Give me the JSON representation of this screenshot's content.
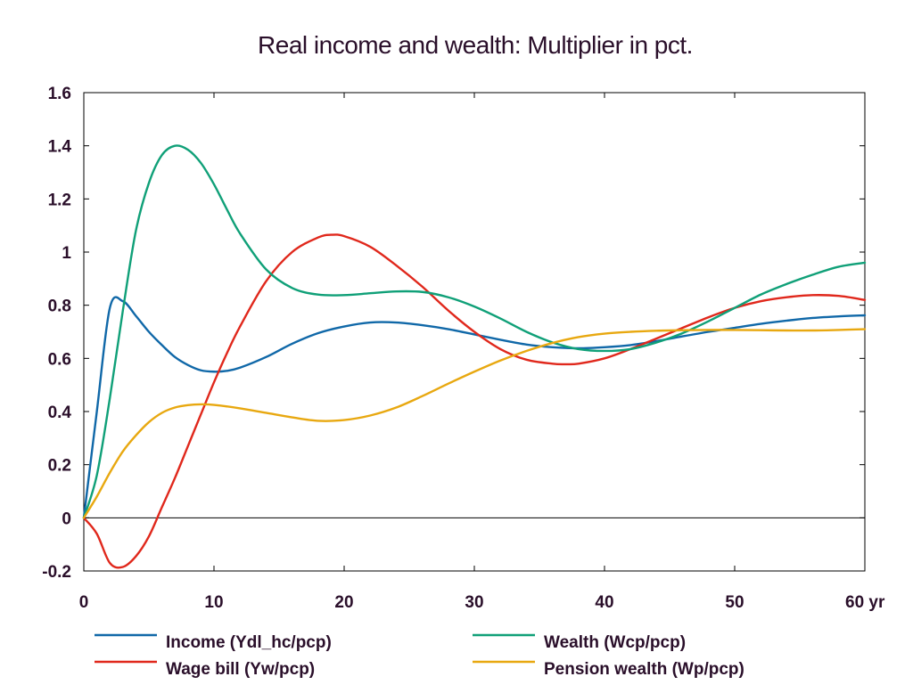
{
  "chart_data": {
    "type": "line",
    "title": "Real income and wealth: Multiplier in pct.",
    "x_unit_label": "yr",
    "xlim": [
      0,
      60
    ],
    "ylim": [
      -0.2,
      1.6
    ],
    "x_ticks": [
      0,
      10,
      20,
      30,
      40,
      50,
      60
    ],
    "x_tick_labels": [
      "0",
      "10",
      "20",
      "30",
      "40",
      "50",
      "60 yr"
    ],
    "y_ticks": [
      -0.2,
      0,
      0.2,
      0.4,
      0.6,
      0.8,
      1,
      1.2,
      1.4,
      1.6
    ],
    "y_tick_labels": [
      "-0.2",
      "0",
      "0.2",
      "0.4",
      "0.6",
      "0.8",
      "1",
      "1.2",
      "1.4",
      "1.6"
    ],
    "grid": false,
    "zero_line": true,
    "legend_position": "bottom",
    "series": [
      {
        "name": "Income (Ydl_hc/pcp)",
        "color": "#1068a8",
        "x": [
          0,
          1,
          2,
          3,
          4,
          5,
          6,
          7,
          8,
          9,
          10,
          11,
          12,
          14,
          16,
          18,
          20,
          22,
          24,
          26,
          28,
          30,
          32,
          34,
          36,
          38,
          40,
          42,
          44,
          46,
          48,
          50,
          52,
          54,
          56,
          58,
          60
        ],
        "values": [
          0.0,
          0.4,
          0.79,
          0.815,
          0.76,
          0.7,
          0.65,
          0.605,
          0.575,
          0.555,
          0.55,
          0.553,
          0.565,
          0.605,
          0.655,
          0.695,
          0.72,
          0.735,
          0.735,
          0.725,
          0.71,
          0.69,
          0.67,
          0.652,
          0.642,
          0.638,
          0.642,
          0.65,
          0.665,
          0.683,
          0.7,
          0.715,
          0.73,
          0.742,
          0.752,
          0.758,
          0.762
        ]
      },
      {
        "name": "Wage bill (Yw/pcp)",
        "color": "#e0281c",
        "x": [
          0,
          1,
          2,
          3,
          4,
          5,
          6,
          7,
          8,
          9,
          10,
          11,
          12,
          14,
          16,
          18,
          19,
          20,
          22,
          24,
          26,
          28,
          30,
          32,
          34,
          36,
          37,
          38,
          40,
          42,
          44,
          46,
          48,
          50,
          52,
          54,
          56,
          58,
          60
        ],
        "values": [
          0.0,
          -0.06,
          -0.17,
          -0.185,
          -0.145,
          -0.07,
          0.04,
          0.15,
          0.27,
          0.39,
          0.51,
          0.62,
          0.72,
          0.89,
          1.0,
          1.055,
          1.065,
          1.06,
          1.02,
          0.95,
          0.87,
          0.78,
          0.7,
          0.635,
          0.595,
          0.58,
          0.578,
          0.58,
          0.6,
          0.635,
          0.675,
          0.715,
          0.755,
          0.79,
          0.815,
          0.83,
          0.838,
          0.835,
          0.82
        ]
      },
      {
        "name": "Wealth (Wcp/pcp)",
        "color": "#10a078",
        "x": [
          0,
          1,
          2,
          3,
          4,
          5,
          6,
          7,
          8,
          9,
          10,
          11,
          12,
          14,
          16,
          18,
          20,
          22,
          24,
          26,
          28,
          30,
          32,
          34,
          36,
          38,
          40,
          42,
          44,
          46,
          48,
          50,
          52,
          54,
          56,
          58,
          60
        ],
        "values": [
          0.0,
          0.16,
          0.45,
          0.78,
          1.08,
          1.26,
          1.365,
          1.4,
          1.385,
          1.335,
          1.255,
          1.16,
          1.07,
          0.935,
          0.865,
          0.84,
          0.838,
          0.845,
          0.852,
          0.85,
          0.83,
          0.795,
          0.75,
          0.7,
          0.66,
          0.635,
          0.628,
          0.635,
          0.66,
          0.695,
          0.74,
          0.79,
          0.84,
          0.88,
          0.915,
          0.945,
          0.96
        ]
      },
      {
        "name": "Pension wealth (Wp/pcp)",
        "color": "#e8a810",
        "x": [
          0,
          1,
          2,
          3,
          4,
          5,
          6,
          7,
          8,
          9,
          10,
          12,
          14,
          16,
          18,
          20,
          22,
          24,
          26,
          28,
          30,
          32,
          34,
          36,
          38,
          40,
          42,
          44,
          46,
          48,
          50,
          52,
          54,
          56,
          58,
          60
        ],
        "values": [
          0.0,
          0.08,
          0.17,
          0.25,
          0.31,
          0.36,
          0.395,
          0.415,
          0.424,
          0.427,
          0.425,
          0.412,
          0.395,
          0.378,
          0.365,
          0.368,
          0.385,
          0.415,
          0.458,
          0.505,
          0.55,
          0.592,
          0.628,
          0.658,
          0.68,
          0.693,
          0.7,
          0.704,
          0.706,
          0.707,
          0.707,
          0.706,
          0.705,
          0.705,
          0.707,
          0.71
        ]
      }
    ]
  }
}
